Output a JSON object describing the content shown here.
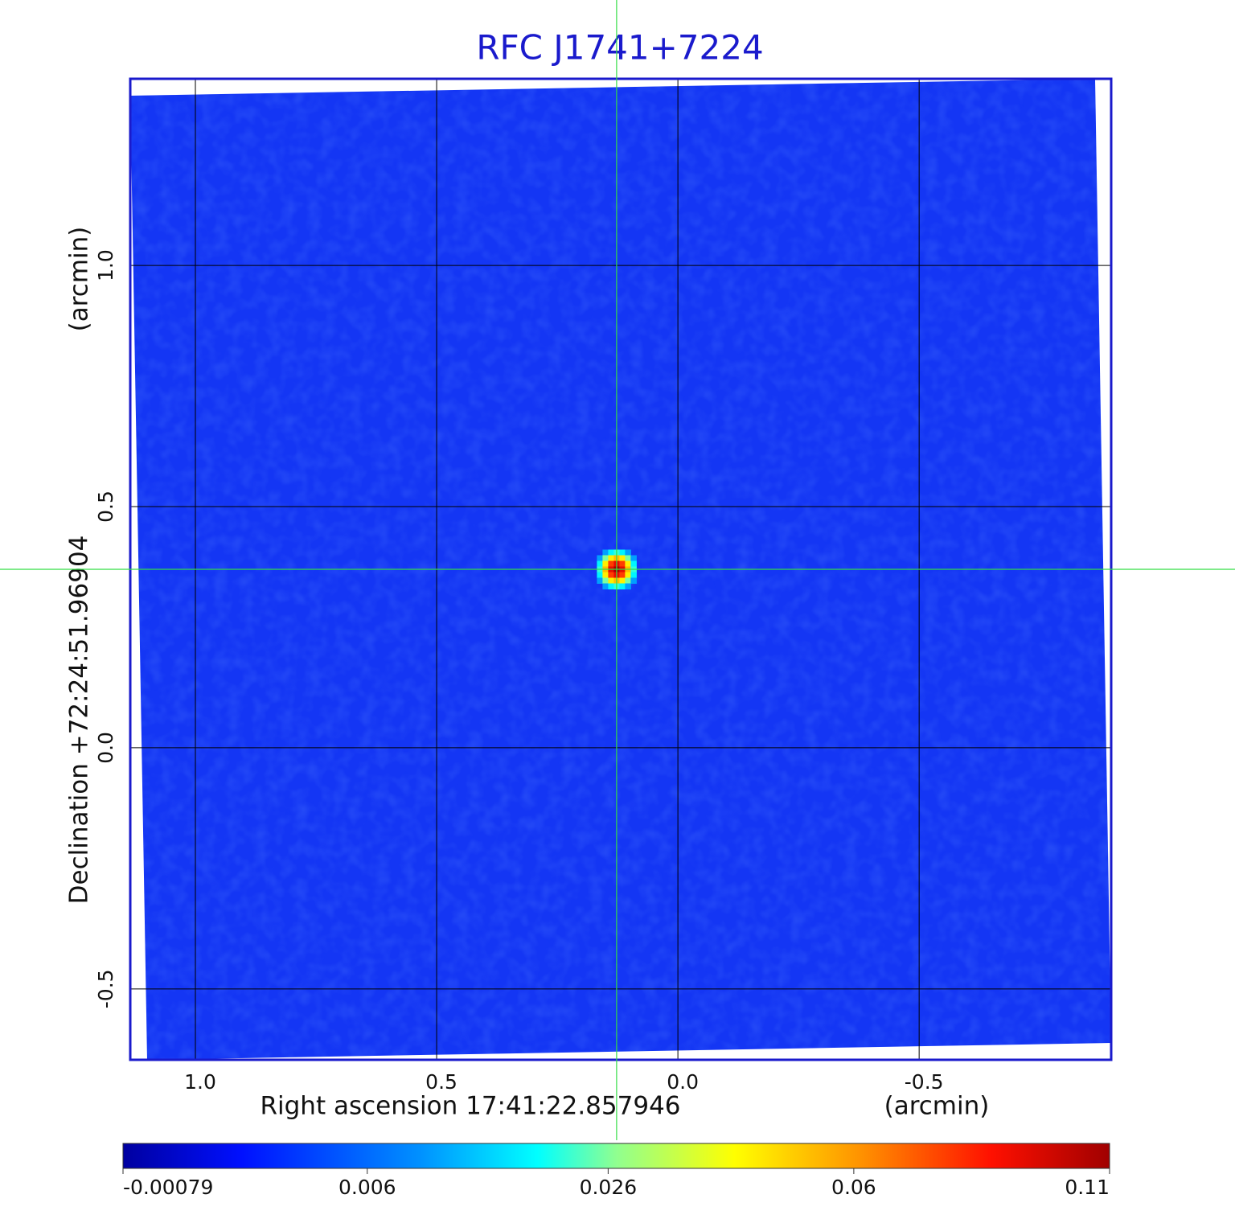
{
  "chart_data": {
    "type": "image",
    "title": "RFC J1741+7224",
    "x_label": "Right ascension  17:41:22.857946",
    "x_unit": "(arcmin)",
    "y_label": "Declination  +72:24:51.96904",
    "y_unit": "(arcmin)",
    "xlim": [
      1.135,
      -0.898
    ],
    "ylim": [
      -0.647,
      1.387
    ],
    "xticks": [
      {
        "value": 1,
        "label": "1.0"
      },
      0.5,
      {
        "value": 0,
        "label": "0.0"
      },
      -0.5
    ],
    "yticks": [
      -0.5,
      {
        "value": 0,
        "label": "0.0"
      },
      0.5,
      {
        "value": 1,
        "label": "1.0"
      }
    ],
    "grid": true,
    "source": {
      "x": 0.127,
      "y": 0.37,
      "peak": 0.11
    },
    "colormap": "jet",
    "color_scale": "sqrt",
    "clim": [
      -0.00079,
      0.11
    ],
    "cticks": [
      -0.00079,
      0.006,
      0.026,
      0.06,
      0.11
    ],
    "background_color": "#1436f4",
    "title_color": "#1a1acc",
    "crosshair_color": "#33dd44"
  }
}
